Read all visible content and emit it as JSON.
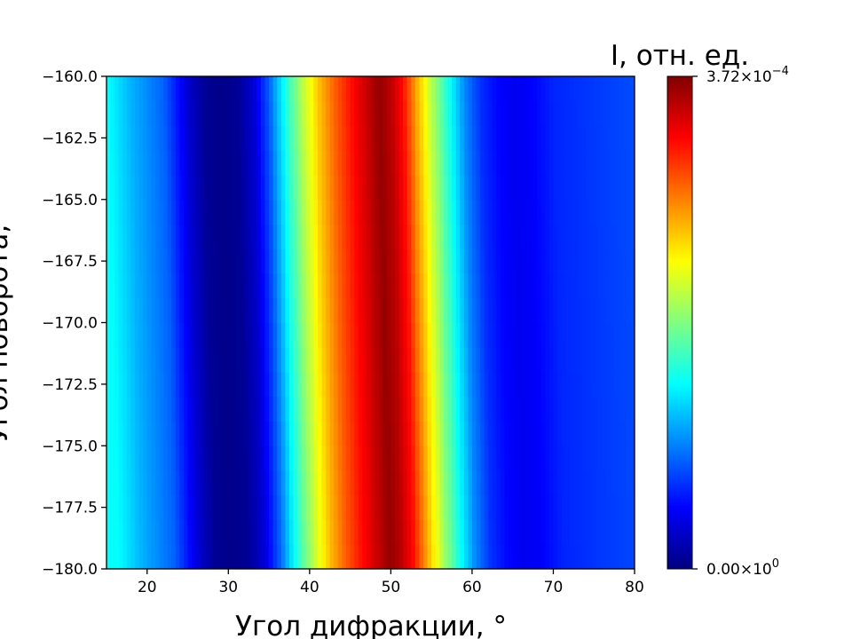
{
  "chart_data": {
    "type": "heatmap",
    "xlabel": "Угол дифракции, °",
    "ylabel": "Угол поворота, °",
    "xlim": [
      15,
      80
    ],
    "ylim": [
      -180,
      -160
    ],
    "x_ticks": [
      20,
      30,
      40,
      50,
      60,
      70,
      80
    ],
    "y_ticks": [
      -160.0,
      -162.5,
      -165.0,
      -167.5,
      -170.0,
      -172.5,
      -175.0,
      -177.5,
      -180.0
    ],
    "y_tick_labels": [
      "−160.0",
      "−162.5",
      "−165.0",
      "−167.5",
      "−170.0",
      "−172.5",
      "−175.0",
      "−177.5",
      "−180.0"
    ],
    "x_tick_labels": [
      "20",
      "30",
      "40",
      "50",
      "60",
      "70",
      "80"
    ],
    "colormap": "jet",
    "colorbar": {
      "title": "I, отн. ед.",
      "min": 0,
      "max": 0.000372,
      "max_label_mantissa": "3.72",
      "max_label_exp": "−4",
      "min_label_mantissa": "0.00",
      "min_label_exp": "0"
    },
    "profile_x": [
      15,
      18,
      22,
      25,
      27,
      29,
      31,
      33,
      35,
      37,
      39,
      41,
      43,
      45,
      47,
      48.5,
      50,
      51.5,
      53,
      55,
      57,
      59,
      61,
      63,
      65,
      67,
      70,
      75,
      80
    ],
    "profile_relative_intensity": [
      0.38,
      0.3,
      0.22,
      0.08,
      0.02,
      0.01,
      0.02,
      0.08,
      0.22,
      0.4,
      0.55,
      0.68,
      0.78,
      0.86,
      0.93,
      0.98,
      0.94,
      0.86,
      0.72,
      0.55,
      0.4,
      0.26,
      0.17,
      0.13,
      0.11,
      0.12,
      0.16,
      0.18,
      0.2
    ],
    "peak_shift_per_unit_y": 0.07
  }
}
